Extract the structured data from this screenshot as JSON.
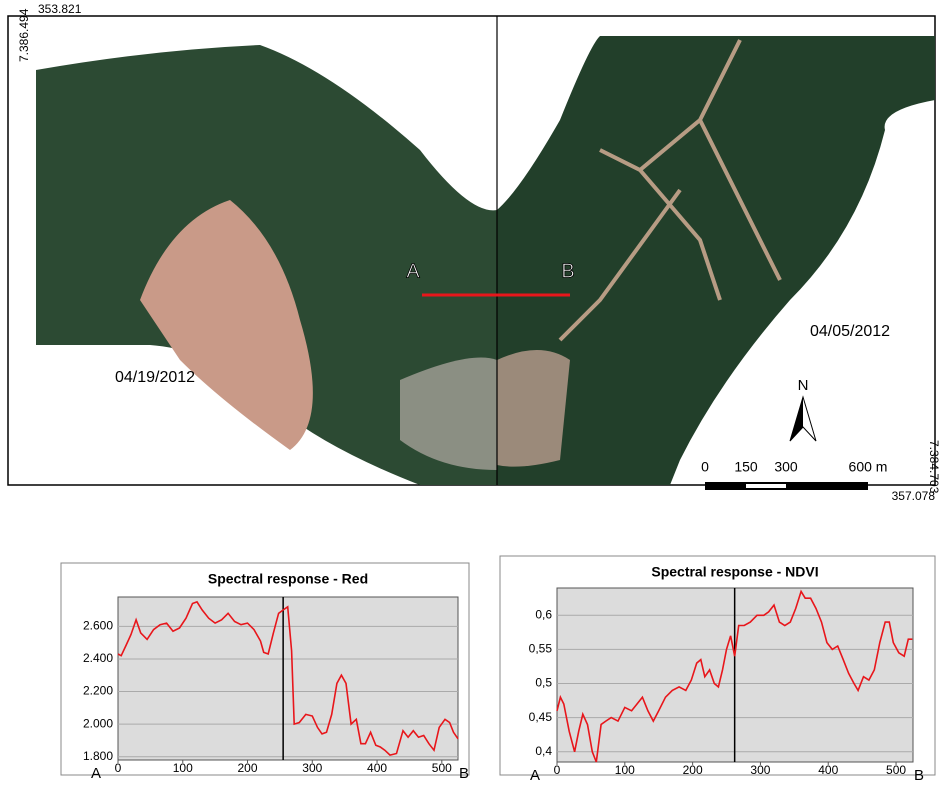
{
  "map": {
    "corner_top_left_x": "353.821",
    "corner_top_left_y": "7.386.494",
    "corner_bottom_right_x": "357.078",
    "corner_bottom_right_y": "7.384.703",
    "date_left": "04/19/2012",
    "date_right": "04/05/2012",
    "point_a": "A",
    "point_b": "B",
    "north": "N",
    "scale_labels": [
      "0",
      "150",
      "300",
      "600 m"
    ]
  },
  "chart_data": [
    {
      "type": "line",
      "title": "Spectral response - Red",
      "start_label": "A",
      "end_label": "B",
      "color": "#e8161b",
      "divider_x": 255,
      "xlim": [
        0,
        525
      ],
      "xticks": [
        0,
        100,
        200,
        300,
        400,
        500
      ],
      "ylim": [
        1780,
        2780
      ],
      "yticks": [
        {
          "value": 1800,
          "label": "1.800"
        },
        {
          "value": 2000,
          "label": "2.000"
        },
        {
          "value": 2200,
          "label": "2.200"
        },
        {
          "value": 2400,
          "label": "2.400"
        },
        {
          "value": 2600,
          "label": "2.600"
        }
      ],
      "grid": true,
      "x": [
        0,
        5,
        12,
        20,
        28,
        35,
        45,
        55,
        65,
        75,
        85,
        95,
        105,
        115,
        122,
        130,
        140,
        150,
        160,
        170,
        180,
        190,
        200,
        210,
        220,
        225,
        232,
        240,
        248,
        255,
        262,
        268,
        272,
        280,
        290,
        300,
        308,
        315,
        322,
        330,
        338,
        345,
        352,
        360,
        368,
        375,
        382,
        390,
        398,
        405,
        412,
        420,
        430,
        440,
        448,
        456,
        464,
        472,
        480,
        488,
        496,
        505,
        512,
        518,
        525
      ],
      "values": [
        2430,
        2420,
        2480,
        2550,
        2640,
        2560,
        2520,
        2580,
        2610,
        2620,
        2570,
        2590,
        2650,
        2740,
        2750,
        2700,
        2650,
        2620,
        2640,
        2680,
        2630,
        2610,
        2620,
        2580,
        2510,
        2440,
        2430,
        2560,
        2680,
        2700,
        2720,
        2450,
        2000,
        2010,
        2060,
        2050,
        1980,
        1940,
        1950,
        2060,
        2250,
        2300,
        2250,
        2000,
        2030,
        1880,
        1880,
        1950,
        1870,
        1860,
        1840,
        1810,
        1820,
        1960,
        1920,
        1960,
        1920,
        1930,
        1880,
        1840,
        1980,
        2030,
        2010,
        1950,
        1910
      ]
    },
    {
      "type": "line",
      "title": "Spectral response - NDVI",
      "start_label": "A",
      "end_label": "B",
      "color": "#e8161b",
      "divider_x": 262,
      "xlim": [
        0,
        525
      ],
      "xticks": [
        0,
        100,
        200,
        300,
        400,
        500
      ],
      "ylim": [
        0.385,
        0.64
      ],
      "yticks": [
        {
          "value": 0.4,
          "label": "0,4"
        },
        {
          "value": 0.45,
          "label": "0,45"
        },
        {
          "value": 0.5,
          "label": "0,5"
        },
        {
          "value": 0.55,
          "label": "0,55"
        },
        {
          "value": 0.6,
          "label": "0,6"
        }
      ],
      "grid": true,
      "x": [
        0,
        5,
        10,
        18,
        26,
        32,
        38,
        45,
        52,
        58,
        65,
        72,
        80,
        90,
        100,
        110,
        118,
        126,
        134,
        142,
        150,
        160,
        170,
        180,
        190,
        198,
        206,
        212,
        218,
        225,
        232,
        238,
        244,
        250,
        256,
        262,
        268,
        276,
        285,
        295,
        305,
        312,
        320,
        328,
        336,
        344,
        352,
        360,
        366,
        374,
        382,
        390,
        398,
        406,
        414,
        422,
        430,
        438,
        444,
        452,
        460,
        468,
        476,
        484,
        490,
        496,
        504,
        512,
        518,
        524
      ],
      "values": [
        0.46,
        0.48,
        0.47,
        0.43,
        0.4,
        0.43,
        0.455,
        0.44,
        0.4,
        0.385,
        0.44,
        0.445,
        0.45,
        0.445,
        0.465,
        0.46,
        0.47,
        0.48,
        0.46,
        0.445,
        0.46,
        0.48,
        0.49,
        0.495,
        0.49,
        0.505,
        0.53,
        0.535,
        0.51,
        0.52,
        0.5,
        0.495,
        0.52,
        0.55,
        0.57,
        0.54,
        0.585,
        0.585,
        0.59,
        0.6,
        0.6,
        0.605,
        0.615,
        0.59,
        0.585,
        0.59,
        0.61,
        0.635,
        0.625,
        0.625,
        0.61,
        0.59,
        0.56,
        0.55,
        0.555,
        0.535,
        0.515,
        0.5,
        0.49,
        0.51,
        0.505,
        0.52,
        0.56,
        0.59,
        0.59,
        0.56,
        0.545,
        0.54,
        0.565,
        0.565
      ]
    }
  ]
}
